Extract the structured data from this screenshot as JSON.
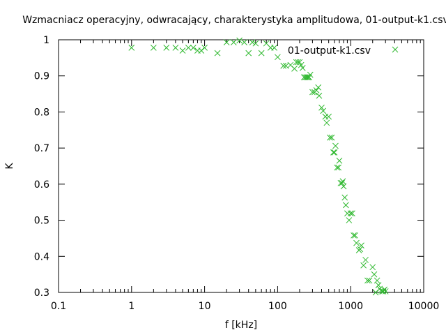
{
  "chart_data": {
    "type": "scatter",
    "title": "Wzmacniacz operacyjny, odwracający, charakterystyka amplitudowa, 01-output-k1.csv",
    "xlabel": "f [kHz]",
    "ylabel": "K",
    "xscale": "log",
    "xlim": [
      0.1,
      10000
    ],
    "ylim": [
      0.3,
      1.0
    ],
    "xticks": [
      0.1,
      1,
      10,
      100,
      1000,
      10000
    ],
    "xtick_labels": [
      "0.1",
      "1",
      "10",
      "100",
      "1000",
      "10000"
    ],
    "yticks": [
      0.3,
      0.4,
      0.5,
      0.6,
      0.7,
      0.8,
      0.9,
      1.0
    ],
    "ytick_labels": [
      "0.3",
      "0.4",
      "0.5",
      "0.6",
      "0.7",
      "0.8",
      "0.9",
      "1"
    ],
    "grid": false,
    "legend": "top-right",
    "marker_color": "#2eb82e",
    "series": [
      {
        "name": "01-output-k1.csv",
        "marker": "x",
        "points": [
          [
            1,
            0.978
          ],
          [
            2,
            0.978
          ],
          [
            3,
            0.978
          ],
          [
            4,
            0.978
          ],
          [
            5,
            0.97
          ],
          [
            6,
            0.978
          ],
          [
            7,
            0.978
          ],
          [
            8,
            0.97
          ],
          [
            9,
            0.97
          ],
          [
            10,
            0.978
          ],
          [
            15,
            0.963
          ],
          [
            20,
            0.993
          ],
          [
            25,
            0.993
          ],
          [
            30,
            0.998
          ],
          [
            35,
            0.993
          ],
          [
            40,
            0.963
          ],
          [
            45,
            0.993
          ],
          [
            50,
            0.99
          ],
          [
            60,
            0.963
          ],
          [
            70,
            0.99
          ],
          [
            80,
            0.978
          ],
          [
            90,
            0.978
          ],
          [
            100,
            0.952
          ],
          [
            120,
            0.928
          ],
          [
            130,
            0.928
          ],
          [
            150,
            0.93
          ],
          [
            170,
            0.92
          ],
          [
            180,
            0.938
          ],
          [
            190,
            0.938
          ],
          [
            200,
            0.938
          ],
          [
            210,
            0.93
          ],
          [
            220,
            0.922
          ],
          [
            230,
            0.896
          ],
          [
            240,
            0.896
          ],
          [
            250,
            0.896
          ],
          [
            260,
            0.896
          ],
          [
            270,
            0.896
          ],
          [
            280,
            0.903
          ],
          [
            300,
            0.855
          ],
          [
            320,
            0.855
          ],
          [
            340,
            0.86
          ],
          [
            360,
            0.868
          ],
          [
            370,
            0.845
          ],
          [
            400,
            0.812
          ],
          [
            420,
            0.803
          ],
          [
            450,
            0.787
          ],
          [
            470,
            0.77
          ],
          [
            500,
            0.787
          ],
          [
            520,
            0.729
          ],
          [
            550,
            0.729
          ],
          [
            580,
            0.688
          ],
          [
            600,
            0.688
          ],
          [
            620,
            0.706
          ],
          [
            650,
            0.646
          ],
          [
            680,
            0.646
          ],
          [
            700,
            0.665
          ],
          [
            730,
            0.603
          ],
          [
            760,
            0.603
          ],
          [
            780,
            0.608
          ],
          [
            800,
            0.594
          ],
          [
            830,
            0.563
          ],
          [
            860,
            0.542
          ],
          [
            900,
            0.519
          ],
          [
            950,
            0.5
          ],
          [
            1000,
            0.519
          ],
          [
            1050,
            0.519
          ],
          [
            1100,
            0.458
          ],
          [
            1150,
            0.458
          ],
          [
            1200,
            0.437
          ],
          [
            1300,
            0.417
          ],
          [
            1350,
            0.42
          ],
          [
            1400,
            0.43
          ],
          [
            1500,
            0.375
          ],
          [
            1600,
            0.39
          ],
          [
            1700,
            0.333
          ],
          [
            1800,
            0.333
          ],
          [
            2000,
            0.37
          ],
          [
            2100,
            0.35
          ],
          [
            2200,
            0.3
          ],
          [
            2300,
            0.333
          ],
          [
            2400,
            0.32
          ],
          [
            2500,
            0.31
          ],
          [
            2600,
            0.305
          ],
          [
            2700,
            0.303
          ],
          [
            2800,
            0.303
          ],
          [
            2900,
            0.308
          ],
          [
            3000,
            0.303
          ]
        ]
      }
    ]
  }
}
